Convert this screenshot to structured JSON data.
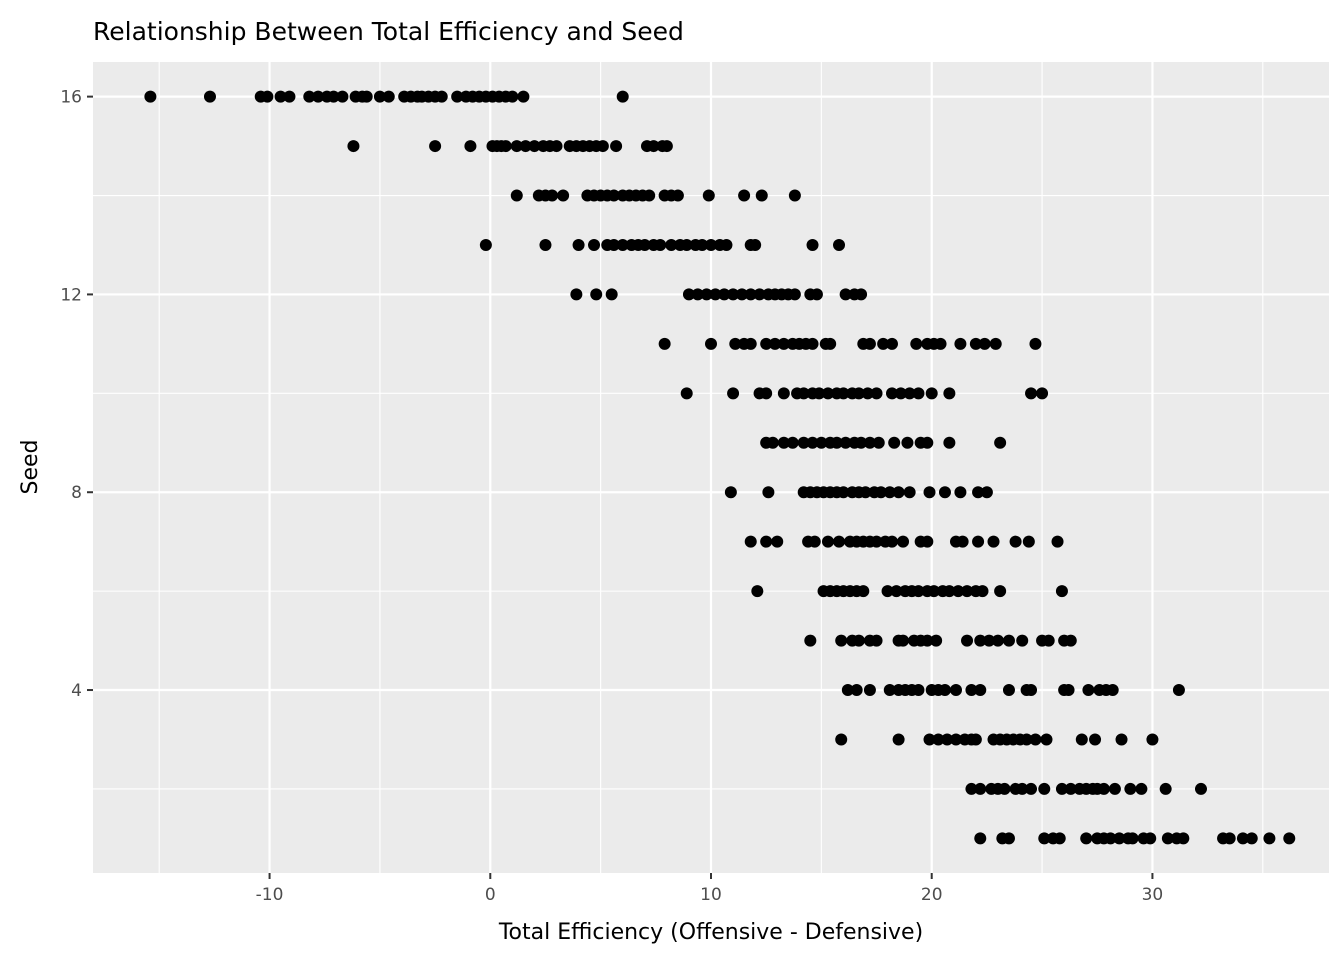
{
  "chart_data": {
    "type": "scatter",
    "title": "Relationship Between Total Efficiency and Seed",
    "xlabel": "Total Efficiency (Offensive - Defensive)",
    "ylabel": "Seed",
    "xlim": [
      -18,
      38
    ],
    "ylim": [
      0.3,
      16.7
    ],
    "xticks": [
      -10,
      0,
      10,
      20,
      30
    ],
    "xtick_labels": [
      "-10",
      "0",
      "10",
      "20",
      "30"
    ],
    "yticks": [
      4,
      8,
      12,
      16
    ],
    "ytick_labels": [
      "4",
      "8",
      "12",
      "16"
    ],
    "grid": true,
    "legend": "none",
    "colors": {
      "panel": "#EBEBEB",
      "grid": "#FFFFFF",
      "point": "#000000",
      "tick_text": "#4D4D4D"
    },
    "points": [
      {
        "seed": 16,
        "x": [
          -15.4,
          -12.7,
          -10.4,
          -10.1,
          -9.5,
          -9.1,
          -8.2,
          -7.8,
          -7.4,
          -7.1,
          -6.7,
          -6.1,
          -5.8,
          -5.6,
          -5.0,
          -4.6,
          -3.9,
          -3.6,
          -3.3,
          -3.1,
          -2.8,
          -2.5,
          -2.2,
          -1.5,
          -1.1,
          -0.8,
          -0.5,
          -0.2,
          0.1,
          0.4,
          0.7,
          1.0,
          1.5,
          6.0
        ]
      },
      {
        "seed": 15,
        "x": [
          -6.2,
          -2.5,
          -0.9,
          0.1,
          0.3,
          0.5,
          0.7,
          1.2,
          1.6,
          2.0,
          2.4,
          2.7,
          3.0,
          3.6,
          3.9,
          4.2,
          4.5,
          4.8,
          5.1,
          5.7,
          7.1,
          7.4,
          7.8,
          8.0
        ]
      },
      {
        "seed": 14,
        "x": [
          1.2,
          2.2,
          2.5,
          2.8,
          3.3,
          4.4,
          4.7,
          5.0,
          5.3,
          5.6,
          6.0,
          6.3,
          6.6,
          6.9,
          7.2,
          7.9,
          8.2,
          8.5,
          9.9,
          11.5,
          12.3,
          13.8
        ]
      },
      {
        "seed": 13,
        "x": [
          -0.2,
          2.5,
          4.0,
          4.7,
          5.3,
          5.6,
          6.0,
          6.4,
          6.7,
          7.0,
          7.4,
          7.7,
          8.2,
          8.6,
          8.9,
          9.3,
          9.6,
          10.0,
          10.4,
          10.7,
          11.8,
          12.0,
          14.6,
          15.8
        ]
      },
      {
        "seed": 12,
        "x": [
          3.9,
          4.8,
          5.5,
          9.0,
          9.4,
          9.8,
          10.2,
          10.6,
          11.0,
          11.4,
          11.8,
          12.2,
          12.6,
          12.9,
          13.2,
          13.5,
          13.8,
          14.5,
          14.8,
          16.1,
          16.5,
          16.8
        ]
      },
      {
        "seed": 11,
        "x": [
          7.9,
          10.0,
          11.1,
          11.5,
          11.8,
          12.5,
          12.9,
          13.3,
          13.7,
          14.0,
          14.3,
          14.6,
          15.2,
          15.4,
          16.9,
          17.2,
          17.8,
          18.2,
          19.3,
          19.8,
          20.1,
          20.4,
          21.3,
          22.0,
          22.4,
          22.9,
          24.7
        ]
      },
      {
        "seed": 10,
        "x": [
          8.9,
          11.0,
          12.2,
          12.5,
          13.3,
          13.9,
          14.2,
          14.6,
          14.9,
          15.3,
          15.7,
          16.0,
          16.4,
          16.7,
          17.1,
          17.5,
          18.2,
          18.6,
          19.0,
          19.4,
          20.0,
          20.8,
          24.5,
          25.0
        ]
      },
      {
        "seed": 9,
        "x": [
          12.5,
          12.8,
          13.3,
          13.7,
          14.2,
          14.6,
          15.0,
          15.4,
          15.7,
          16.1,
          16.5,
          16.8,
          17.2,
          17.6,
          18.3,
          18.9,
          19.5,
          19.8,
          20.8,
          23.1
        ]
      },
      {
        "seed": 8,
        "x": [
          10.9,
          12.6,
          14.2,
          14.5,
          14.8,
          15.1,
          15.4,
          15.7,
          16.0,
          16.4,
          16.7,
          17.0,
          17.4,
          17.7,
          18.1,
          18.5,
          19.0,
          19.9,
          20.6,
          21.3,
          22.1,
          22.5
        ]
      },
      {
        "seed": 7,
        "x": [
          11.8,
          12.5,
          13.0,
          14.4,
          14.7,
          15.3,
          15.8,
          16.3,
          16.6,
          16.9,
          17.2,
          17.5,
          17.9,
          18.2,
          18.7,
          19.5,
          19.8,
          21.1,
          21.4,
          22.1,
          22.8,
          23.8,
          24.4,
          25.7
        ]
      },
      {
        "seed": 6,
        "x": [
          12.1,
          15.1,
          15.4,
          15.7,
          16.0,
          16.3,
          16.6,
          16.9,
          18.0,
          18.4,
          18.8,
          19.1,
          19.4,
          19.8,
          20.1,
          20.5,
          20.8,
          21.2,
          21.6,
          22.0,
          22.3,
          23.1,
          25.9
        ]
      },
      {
        "seed": 5,
        "x": [
          14.5,
          15.9,
          16.4,
          16.7,
          17.2,
          17.5,
          18.5,
          18.7,
          19.2,
          19.5,
          19.8,
          20.2,
          21.6,
          22.2,
          22.6,
          23.0,
          23.5,
          24.1,
          25.0,
          25.3,
          26.0,
          26.3
        ]
      },
      {
        "seed": 4,
        "x": [
          16.2,
          16.6,
          17.2,
          18.1,
          18.5,
          18.8,
          19.1,
          19.4,
          20.0,
          20.3,
          20.6,
          21.1,
          21.8,
          22.2,
          23.5,
          24.3,
          24.5,
          26.0,
          26.2,
          27.1,
          27.6,
          27.9,
          28.2,
          31.2
        ]
      },
      {
        "seed": 3,
        "x": [
          15.9,
          18.5,
          19.9,
          20.3,
          20.7,
          21.1,
          21.5,
          21.8,
          22.0,
          22.8,
          23.1,
          23.4,
          23.7,
          24.0,
          24.3,
          24.7,
          25.2,
          26.8,
          27.4,
          28.6,
          30.0
        ]
      },
      {
        "seed": 2,
        "x": [
          21.8,
          22.2,
          22.7,
          23.0,
          23.3,
          23.8,
          24.1,
          24.5,
          25.1,
          25.9,
          26.3,
          26.7,
          27.0,
          27.3,
          27.5,
          27.8,
          28.3,
          29.0,
          29.5,
          30.6,
          32.2
        ]
      },
      {
        "seed": 1,
        "x": [
          22.2,
          23.2,
          23.5,
          25.1,
          25.5,
          25.8,
          27.0,
          27.5,
          27.8,
          28.1,
          28.5,
          28.9,
          29.1,
          29.6,
          29.9,
          30.7,
          31.1,
          31.4,
          33.2,
          33.5,
          34.1,
          34.5,
          35.3,
          36.2
        ]
      }
    ]
  }
}
